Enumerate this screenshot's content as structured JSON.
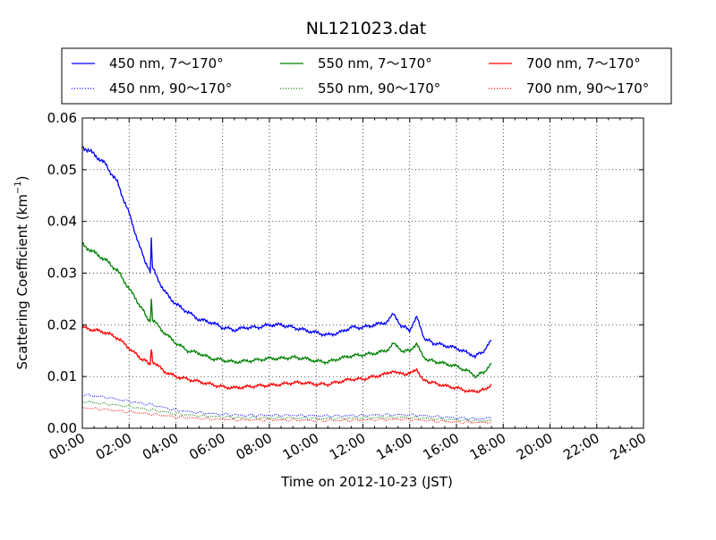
{
  "chart_data": {
    "type": "line",
    "title": "NL121023.dat",
    "xlabel": "Time on 2012-10-23 (JST)",
    "ylabel": "Scattering Coefficient (km",
    "ylabel_sup": "−1",
    "ylabel_end": ")",
    "xlim_hours": [
      0,
      24
    ],
    "ylim": [
      0,
      0.06
    ],
    "x_ticks": [
      0,
      2,
      4,
      6,
      8,
      10,
      12,
      14,
      16,
      18,
      20,
      22,
      24
    ],
    "x_tick_labels": [
      "00:00",
      "02:00",
      "04:00",
      "06:00",
      "08:00",
      "10:00",
      "12:00",
      "14:00",
      "16:00",
      "18:00",
      "20:00",
      "22:00",
      "24:00"
    ],
    "y_ticks": [
      0,
      0.01,
      0.02,
      0.03,
      0.04,
      0.05,
      0.06
    ],
    "y_tick_labels": [
      "0.00",
      "0.01",
      "0.02",
      "0.03",
      "0.04",
      "0.05",
      "0.06"
    ],
    "grid": true,
    "legend_position": "top, above plot",
    "series": [
      {
        "name": "450 nm, 7～170°",
        "color": "#0000ff",
        "style": "solid",
        "points": [
          [
            0,
            0.0545
          ],
          [
            0.5,
            0.053
          ],
          [
            1,
            0.051
          ],
          [
            1.5,
            0.0475
          ],
          [
            2,
            0.0415
          ],
          [
            2.5,
            0.0345
          ],
          [
            2.9,
            0.03
          ],
          [
            2.95,
            0.0365
          ],
          [
            3,
            0.031
          ],
          [
            3.5,
            0.0265
          ],
          [
            4,
            0.024
          ],
          [
            4.5,
            0.0225
          ],
          [
            5,
            0.021
          ],
          [
            5.5,
            0.0205
          ],
          [
            6,
            0.0195
          ],
          [
            6.5,
            0.019
          ],
          [
            7,
            0.0195
          ],
          [
            7.5,
            0.0195
          ],
          [
            8,
            0.02
          ],
          [
            8.5,
            0.02
          ],
          [
            9,
            0.0195
          ],
          [
            9.5,
            0.019
          ],
          [
            10,
            0.0185
          ],
          [
            10.5,
            0.018
          ],
          [
            11,
            0.0185
          ],
          [
            11.5,
            0.0195
          ],
          [
            12,
            0.0195
          ],
          [
            12.5,
            0.02
          ],
          [
            13,
            0.0205
          ],
          [
            13.3,
            0.022
          ],
          [
            13.6,
            0.02
          ],
          [
            14,
            0.019
          ],
          [
            14.3,
            0.0215
          ],
          [
            14.6,
            0.0175
          ],
          [
            15,
            0.0165
          ],
          [
            15.5,
            0.016
          ],
          [
            16,
            0.0155
          ],
          [
            16.5,
            0.0145
          ],
          [
            16.8,
            0.014
          ],
          [
            17.2,
            0.015
          ],
          [
            17.5,
            0.017
          ]
        ]
      },
      {
        "name": "550 nm, 7～170°",
        "color": "#008000",
        "style": "solid",
        "points": [
          [
            0,
            0.0355
          ],
          [
            0.5,
            0.034
          ],
          [
            1,
            0.0325
          ],
          [
            1.5,
            0.0305
          ],
          [
            2,
            0.027
          ],
          [
            2.5,
            0.0235
          ],
          [
            2.9,
            0.0205
          ],
          [
            2.95,
            0.025
          ],
          [
            3,
            0.021
          ],
          [
            3.5,
            0.0185
          ],
          [
            4,
            0.0165
          ],
          [
            4.5,
            0.015
          ],
          [
            5,
            0.0145
          ],
          [
            5.5,
            0.0135
          ],
          [
            6,
            0.0132
          ],
          [
            6.5,
            0.0128
          ],
          [
            7,
            0.013
          ],
          [
            7.5,
            0.0132
          ],
          [
            8,
            0.0135
          ],
          [
            8.5,
            0.0135
          ],
          [
            9,
            0.0137
          ],
          [
            9.5,
            0.0135
          ],
          [
            10,
            0.013
          ],
          [
            10.5,
            0.0128
          ],
          [
            11,
            0.0135
          ],
          [
            11.5,
            0.014
          ],
          [
            12,
            0.0142
          ],
          [
            12.5,
            0.0145
          ],
          [
            13,
            0.015
          ],
          [
            13.3,
            0.0165
          ],
          [
            13.6,
            0.015
          ],
          [
            14,
            0.015
          ],
          [
            14.3,
            0.0165
          ],
          [
            14.6,
            0.0135
          ],
          [
            15,
            0.013
          ],
          [
            15.5,
            0.0125
          ],
          [
            16,
            0.012
          ],
          [
            16.5,
            0.011
          ],
          [
            16.8,
            0.01
          ],
          [
            17.2,
            0.011
          ],
          [
            17.5,
            0.0125
          ]
        ]
      },
      {
        "name": "700 nm, 7～170°",
        "color": "#ff0000",
        "style": "solid",
        "points": [
          [
            0,
            0.0195
          ],
          [
            0.5,
            0.019
          ],
          [
            1,
            0.0185
          ],
          [
            1.5,
            0.0175
          ],
          [
            2,
            0.0155
          ],
          [
            2.5,
            0.0135
          ],
          [
            2.9,
            0.0125
          ],
          [
            2.95,
            0.0155
          ],
          [
            3,
            0.013
          ],
          [
            3.5,
            0.011
          ],
          [
            4,
            0.01
          ],
          [
            4.5,
            0.0095
          ],
          [
            5,
            0.009
          ],
          [
            5.5,
            0.0085
          ],
          [
            6,
            0.008
          ],
          [
            6.5,
            0.0078
          ],
          [
            7,
            0.008
          ],
          [
            7.5,
            0.0082
          ],
          [
            8,
            0.0083
          ],
          [
            8.5,
            0.0085
          ],
          [
            9,
            0.0088
          ],
          [
            9.5,
            0.0088
          ],
          [
            10,
            0.0085
          ],
          [
            10.5,
            0.0085
          ],
          [
            11,
            0.009
          ],
          [
            11.5,
            0.0095
          ],
          [
            12,
            0.0095
          ],
          [
            12.5,
            0.01
          ],
          [
            13,
            0.0105
          ],
          [
            13.3,
            0.0112
          ],
          [
            13.6,
            0.0105
          ],
          [
            14,
            0.0105
          ],
          [
            14.3,
            0.0115
          ],
          [
            14.6,
            0.0092
          ],
          [
            15,
            0.0088
          ],
          [
            15.5,
            0.0082
          ],
          [
            16,
            0.0078
          ],
          [
            16.5,
            0.0072
          ],
          [
            16.8,
            0.007
          ],
          [
            17.2,
            0.0075
          ],
          [
            17.5,
            0.0085
          ]
        ]
      },
      {
        "name": "450 nm, 90～170°",
        "color": "#0000ff",
        "style": "dotted",
        "points": [
          [
            0,
            0.0065
          ],
          [
            1,
            0.006
          ],
          [
            2,
            0.0052
          ],
          [
            3,
            0.0045
          ],
          [
            4,
            0.0035
          ],
          [
            5,
            0.003
          ],
          [
            6,
            0.0027
          ],
          [
            7,
            0.0025
          ],
          [
            8,
            0.0025
          ],
          [
            9,
            0.0025
          ],
          [
            10,
            0.0024
          ],
          [
            11,
            0.0024
          ],
          [
            12,
            0.0025
          ],
          [
            13,
            0.0026
          ],
          [
            14,
            0.0026
          ],
          [
            15,
            0.0023
          ],
          [
            16,
            0.002
          ],
          [
            17,
            0.0018
          ],
          [
            17.5,
            0.002
          ]
        ]
      },
      {
        "name": "550 nm, 90～170°",
        "color": "#008000",
        "style": "dotted",
        "points": [
          [
            0,
            0.0052
          ],
          [
            1,
            0.0047
          ],
          [
            2,
            0.0042
          ],
          [
            3,
            0.0035
          ],
          [
            4,
            0.0028
          ],
          [
            5,
            0.0024
          ],
          [
            6,
            0.0022
          ],
          [
            7,
            0.002
          ],
          [
            8,
            0.002
          ],
          [
            9,
            0.002
          ],
          [
            10,
            0.0019
          ],
          [
            11,
            0.0019
          ],
          [
            12,
            0.002
          ],
          [
            13,
            0.0021
          ],
          [
            14,
            0.0021
          ],
          [
            15,
            0.0018
          ],
          [
            16,
            0.0016
          ],
          [
            17,
            0.0014
          ],
          [
            17.5,
            0.0015
          ]
        ]
      },
      {
        "name": "700 nm, 90～170°",
        "color": "#ff0000",
        "style": "dotted",
        "points": [
          [
            0,
            0.004
          ],
          [
            1,
            0.0036
          ],
          [
            2,
            0.0032
          ],
          [
            3,
            0.0027
          ],
          [
            4,
            0.0022
          ],
          [
            5,
            0.0019
          ],
          [
            6,
            0.0017
          ],
          [
            7,
            0.0016
          ],
          [
            8,
            0.0016
          ],
          [
            9,
            0.0016
          ],
          [
            10,
            0.0015
          ],
          [
            11,
            0.0015
          ],
          [
            12,
            0.0016
          ],
          [
            13,
            0.0017
          ],
          [
            14,
            0.0017
          ],
          [
            15,
            0.0014
          ],
          [
            16,
            0.0012
          ],
          [
            17,
            0.0011
          ],
          [
            17.5,
            0.0012
          ]
        ]
      }
    ],
    "legend_order": [
      0,
      1,
      2,
      3,
      4,
      5
    ]
  }
}
